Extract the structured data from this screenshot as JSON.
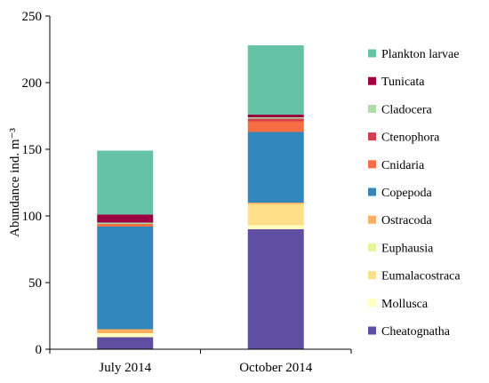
{
  "chart_data": {
    "type": "bar",
    "stacked": true,
    "categories": [
      "July 2014",
      "October 2014"
    ],
    "ylabel": "Abundance ind. m⁻³",
    "xlabel": "",
    "ylim": [
      0,
      250
    ],
    "yticks": [
      0,
      50,
      100,
      150,
      200,
      250
    ],
    "grid": false,
    "legend_position": "right",
    "series": [
      {
        "name": "Cheatognatha",
        "color": "#5e4fa2",
        "values": [
          9,
          90
        ]
      },
      {
        "name": "Mollusca",
        "color": "#ffffbf",
        "values": [
          3,
          3
        ]
      },
      {
        "name": "Eumalacostraca",
        "color": "#fee08b",
        "values": [
          0,
          16
        ]
      },
      {
        "name": "Euphausia",
        "color": "#e6f598",
        "values": [
          0,
          0
        ]
      },
      {
        "name": "Ostracoda",
        "color": "#fdae61",
        "values": [
          3,
          1
        ]
      },
      {
        "name": "Copepoda",
        "color": "#3288bd",
        "values": [
          77,
          53
        ]
      },
      {
        "name": "Cnidaria",
        "color": "#f46d43",
        "values": [
          2,
          8
        ]
      },
      {
        "name": "Ctenophora",
        "color": "#d53e4f",
        "values": [
          0,
          2
        ]
      },
      {
        "name": "Cladocera",
        "color": "#abdda4",
        "values": [
          1,
          1
        ]
      },
      {
        "name": "Tunicata",
        "color": "#9e0142",
        "values": [
          6,
          2
        ]
      },
      {
        "name": "Plankton larvae",
        "color": "#66c2a5",
        "values": [
          48,
          52
        ]
      }
    ]
  }
}
